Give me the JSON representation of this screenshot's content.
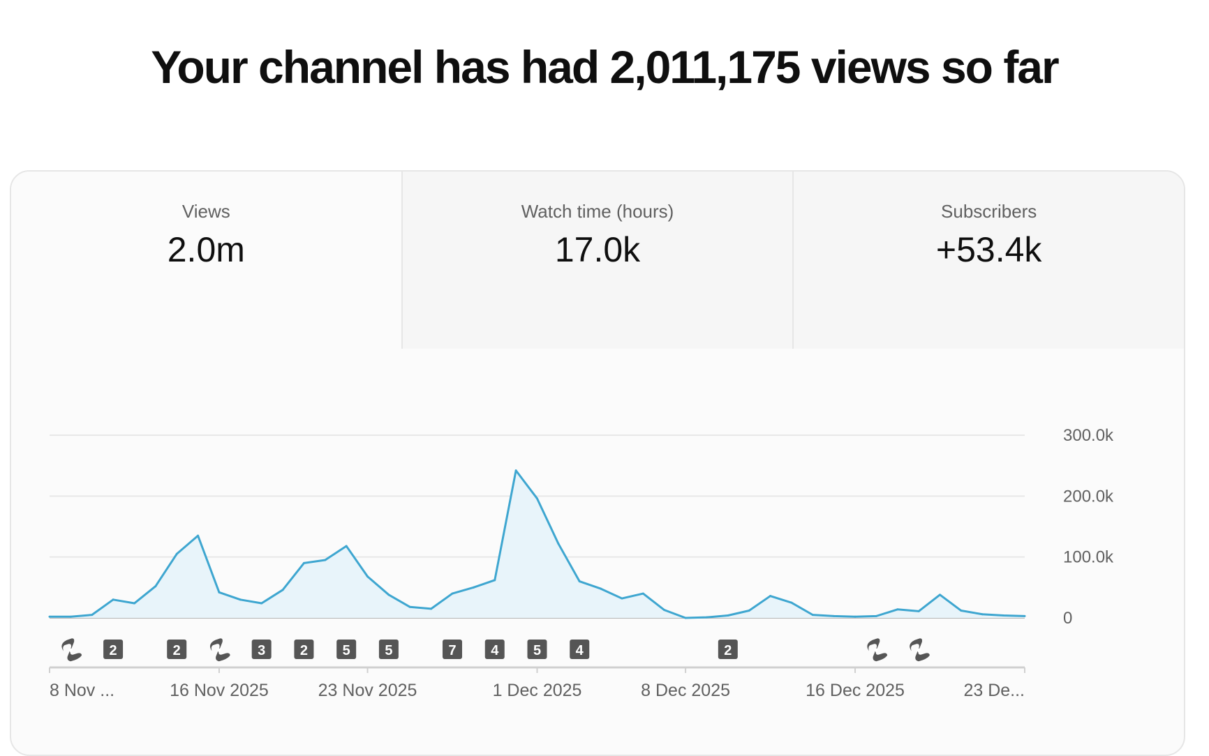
{
  "headline": "Your channel has had 2,011,175 views so far",
  "tabs": [
    {
      "label": "Views",
      "value": "2.0m",
      "active": true
    },
    {
      "label": "Watch time (hours)",
      "value": "17.0k",
      "active": false
    },
    {
      "label": "Subscribers",
      "value": "+53.4k",
      "active": false
    }
  ],
  "colors": {
    "line": "#3ea6d0",
    "fill": "#e8f4fa",
    "grid": "#e8e8e8",
    "badge": "#555555"
  },
  "chart_data": {
    "type": "area",
    "series": [
      {
        "x": [
          "2025-11-08",
          "2025-11-09",
          "2025-11-10",
          "2025-11-11",
          "2025-11-12",
          "2025-11-13",
          "2025-11-14",
          "2025-11-15",
          "2025-11-16",
          "2025-11-17",
          "2025-11-18",
          "2025-11-19",
          "2025-11-20",
          "2025-11-21",
          "2025-11-22",
          "2025-11-23",
          "2025-11-24",
          "2025-11-25",
          "2025-11-26",
          "2025-11-27",
          "2025-11-28",
          "2025-11-29",
          "2025-11-30",
          "2025-12-01",
          "2025-12-02",
          "2025-12-03",
          "2025-12-04",
          "2025-12-05",
          "2025-12-06",
          "2025-12-07",
          "2025-12-08",
          "2025-12-09",
          "2025-12-10",
          "2025-12-11",
          "2025-12-12",
          "2025-12-13",
          "2025-12-14",
          "2025-12-15",
          "2025-12-16",
          "2025-12-17",
          "2025-12-18",
          "2025-12-19",
          "2025-12-20",
          "2025-12-21",
          "2025-12-22",
          "2025-12-23",
          "2025-12-24"
        ],
        "values": [
          2000,
          2000,
          5000,
          30000,
          24000,
          52000,
          105000,
          135000,
          42000,
          30000,
          24000,
          46000,
          90000,
          95000,
          118000,
          68000,
          38000,
          18000,
          15000,
          40000,
          50000,
          62000,
          242000,
          196000,
          122000,
          60000,
          48000,
          32000,
          40000,
          13000,
          0,
          1000,
          4000,
          12000,
          36000,
          25000,
          5000,
          3000,
          2000,
          3000,
          14000,
          11000,
          38000,
          12000,
          6000,
          4000,
          3000
        ]
      }
    ],
    "y_ticks": [
      "300.0k",
      "200.0k",
      "100.0k",
      "0"
    ],
    "x_tick_labels": [
      "8 Nov ...",
      "16 Nov 2025",
      "23 Nov 2025",
      "1 Dec 2025",
      "8 Dec 2025",
      "16 Dec 2025",
      "23 De..."
    ],
    "ylim": [
      0,
      300000
    ],
    "grid": true,
    "annotations": [
      {
        "date": "2025-11-09",
        "label": "",
        "kind": "short"
      },
      {
        "date": "2025-11-11",
        "label": "2",
        "kind": "count"
      },
      {
        "date": "2025-11-14",
        "label": "2",
        "kind": "count"
      },
      {
        "date": "2025-11-16",
        "label": "",
        "kind": "short"
      },
      {
        "date": "2025-11-18",
        "label": "3",
        "kind": "count"
      },
      {
        "date": "2025-11-20",
        "label": "2",
        "kind": "count"
      },
      {
        "date": "2025-11-22",
        "label": "5",
        "kind": "count"
      },
      {
        "date": "2025-11-24",
        "label": "5",
        "kind": "count"
      },
      {
        "date": "2025-11-27",
        "label": "7",
        "kind": "count"
      },
      {
        "date": "2025-11-29",
        "label": "4",
        "kind": "count"
      },
      {
        "date": "2025-12-01",
        "label": "5",
        "kind": "count"
      },
      {
        "date": "2025-12-03",
        "label": "4",
        "kind": "count"
      },
      {
        "date": "2025-12-10",
        "label": "2",
        "kind": "count"
      },
      {
        "date": "2025-12-17",
        "label": "",
        "kind": "short"
      },
      {
        "date": "2025-12-19",
        "label": "",
        "kind": "short"
      }
    ]
  }
}
